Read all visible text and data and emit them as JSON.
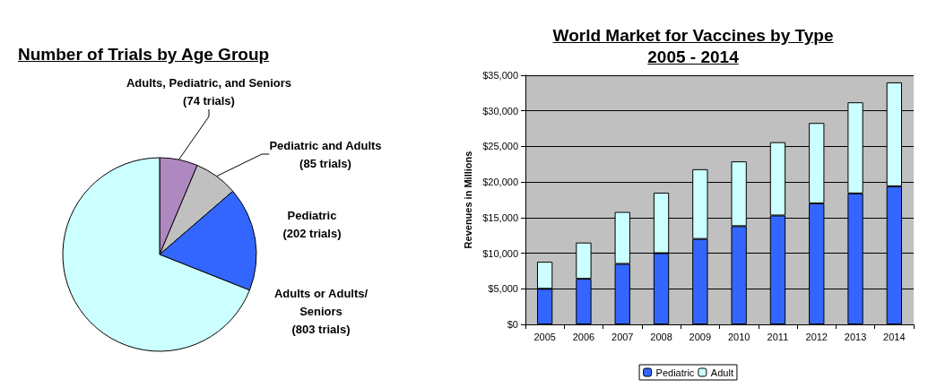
{
  "chart_data": [
    {
      "type": "pie",
      "title": "Number of Trials by Age Group",
      "categories": [
        "Adults, Pediatric, and Seniors",
        "Pediatric and Adults",
        "Pediatric",
        "Adults or Adults/Seniors"
      ],
      "values": [
        74,
        85,
        202,
        803
      ],
      "value_labels": [
        "(74 trials)",
        "(85 trials)",
        "(202 trials)",
        "(803 trials)"
      ],
      "colors": [
        "#b088c0",
        "#c0c0c0",
        "#3366ff",
        "#ccffff"
      ],
      "legend": false
    },
    {
      "type": "bar",
      "title": "World Market for Vaccines by Type 2005 - 2014",
      "ylabel": "Revenues in Millions",
      "categories": [
        "2005",
        "2006",
        "2007",
        "2008",
        "2009",
        "2010",
        "2011",
        "2012",
        "2013",
        "2014"
      ],
      "stacked": true,
      "series": [
        {
          "name": "Pediatric",
          "color": "#3366ff",
          "values": [
            5000,
            6400,
            8500,
            10000,
            12000,
            13800,
            15300,
            17000,
            18400,
            19400
          ]
        },
        {
          "name": "Adult",
          "color": "#ccffff",
          "values": [
            3800,
            5100,
            7300,
            8500,
            9800,
            9100,
            10300,
            11300,
            12800,
            14600
          ]
        }
      ],
      "ylim": [
        0,
        35000
      ],
      "yticks": [
        {
          "value": 0,
          "label": "$0"
        },
        {
          "value": 5000,
          "label": "$5,000"
        },
        {
          "value": 10000,
          "label": "$10,000"
        },
        {
          "value": 15000,
          "label": "$15,000"
        },
        {
          "value": 20000,
          "label": "$20,000"
        },
        {
          "value": 25000,
          "label": "$25,000"
        },
        {
          "value": 30000,
          "label": "$30,000"
        },
        {
          "value": 35000,
          "label": "$35,000"
        }
      ],
      "grid": "y",
      "legend": "bottom"
    }
  ]
}
